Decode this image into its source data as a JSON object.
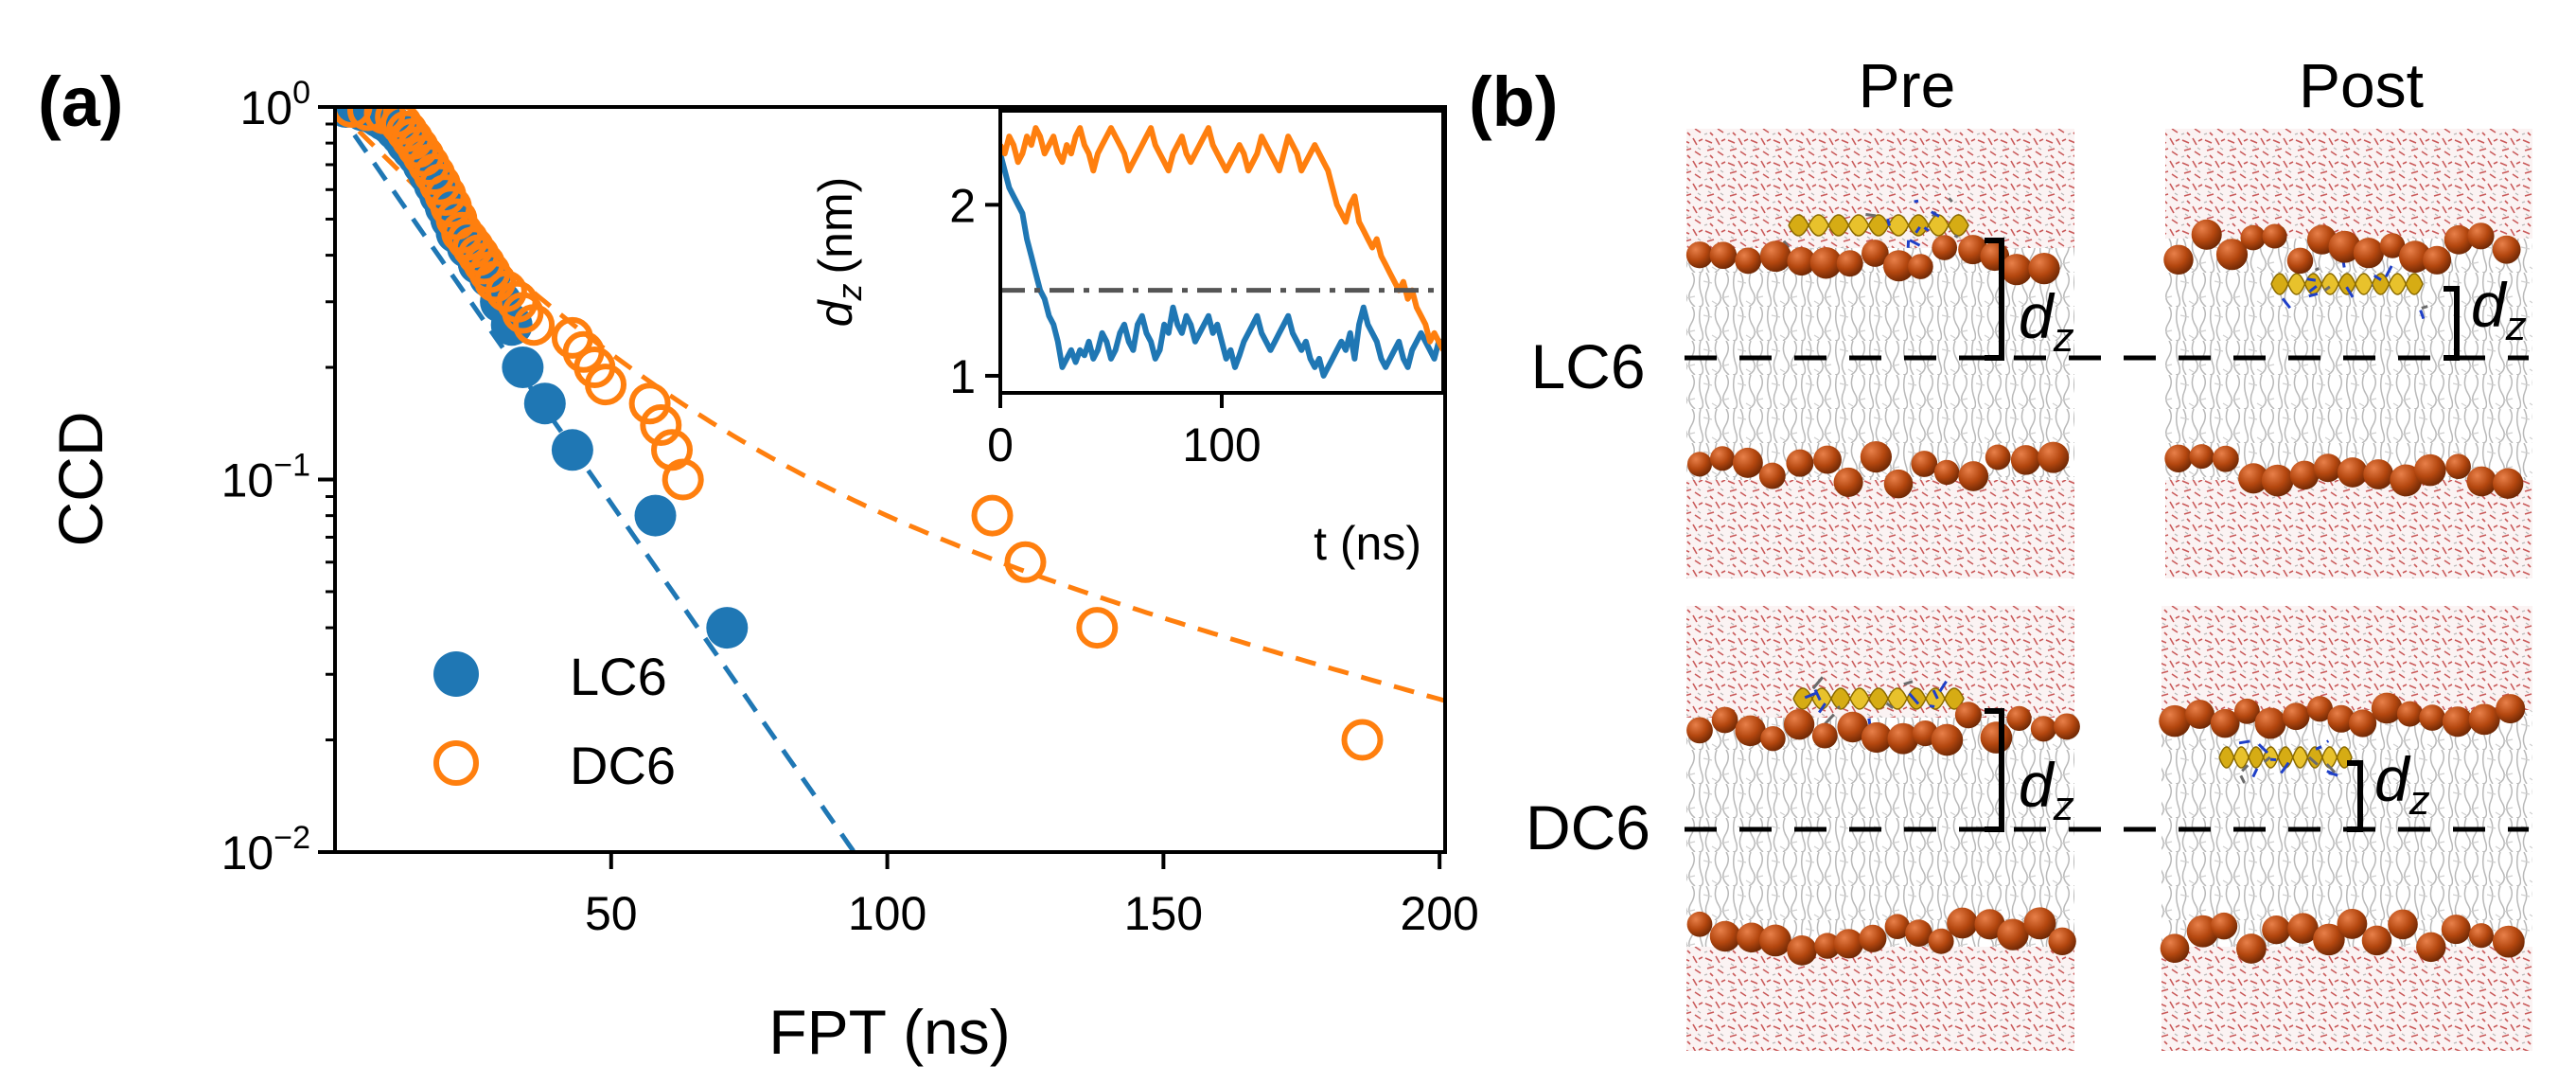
{
  "chart_data": [
    {
      "panel": "(a)",
      "type": "scatter",
      "xlabel": "FPT (ns)",
      "ylabel": "CCD",
      "xlim": [
        0,
        201
      ],
      "ylim": [
        0.01,
        1
      ],
      "yscale": "log",
      "xticks": [
        50,
        100,
        150,
        200
      ],
      "xtick_labels": [
        "50",
        "100",
        "150",
        "200"
      ],
      "yticks": [
        1,
        0.1,
        0.01
      ],
      "ytick_labels": [
        {
          "base": "10",
          "exp": "0"
        },
        {
          "base": "10",
          "exp": "−1"
        },
        {
          "base": "10",
          "exp": "−2"
        }
      ],
      "legend_position": "lower-left",
      "series": [
        {
          "name": "LC6",
          "marker": "filled-circle",
          "color": "#1f77b4",
          "points": [
            [
              2,
              1.0
            ],
            [
              5,
              0.98
            ],
            [
              7,
              0.96
            ],
            [
              8,
              0.94
            ],
            [
              9,
              0.92
            ],
            [
              10,
              0.9
            ],
            [
              11,
              0.87
            ],
            [
              12,
              0.84
            ],
            [
              13,
              0.8
            ],
            [
              14,
              0.77
            ],
            [
              15,
              0.74
            ],
            [
              16,
              0.7
            ],
            [
              17,
              0.66
            ],
            [
              18,
              0.62
            ],
            [
              19,
              0.58
            ],
            [
              20,
              0.54
            ],
            [
              21,
              0.5
            ],
            [
              22,
              0.46
            ],
            [
              24,
              0.42
            ],
            [
              26,
              0.38
            ],
            [
              28,
              0.35
            ],
            [
              30,
              0.3
            ],
            [
              32,
              0.26
            ],
            [
              34,
              0.2
            ],
            [
              38,
              0.16
            ],
            [
              43,
              0.12
            ],
            [
              58,
              0.08
            ],
            [
              71,
              0.04
            ]
          ],
          "fit": {
            "type": "exponential",
            "rate": 0.049,
            "x_range": [
              0,
              95
            ]
          }
        },
        {
          "name": "DC6",
          "marker": "open-circle",
          "color": "#ff7f0e",
          "points": [
            [
              3,
              1.0
            ],
            [
              6,
              0.98
            ],
            [
              9,
              0.96
            ],
            [
              11,
              0.94
            ],
            [
              12,
              0.9
            ],
            [
              13,
              0.86
            ],
            [
              14,
              0.82
            ],
            [
              15,
              0.78
            ],
            [
              16,
              0.74
            ],
            [
              17,
              0.7
            ],
            [
              18,
              0.66
            ],
            [
              19,
              0.62
            ],
            [
              20,
              0.58
            ],
            [
              21,
              0.54
            ],
            [
              22,
              0.5
            ],
            [
              23,
              0.46
            ],
            [
              24,
              0.44
            ],
            [
              25,
              0.42
            ],
            [
              26,
              0.4
            ],
            [
              27,
              0.38
            ],
            [
              28,
              0.36
            ],
            [
              29,
              0.34
            ],
            [
              31,
              0.32
            ],
            [
              33,
              0.3
            ],
            [
              34,
              0.28
            ],
            [
              36,
              0.26
            ],
            [
              43,
              0.24
            ],
            [
              45,
              0.22
            ],
            [
              47,
              0.2
            ],
            [
              49,
              0.18
            ],
            [
              57,
              0.16
            ],
            [
              59,
              0.14
            ],
            [
              61,
              0.12
            ],
            [
              63,
              0.1
            ],
            [
              119,
              0.08
            ],
            [
              125,
              0.06
            ],
            [
              138,
              0.04
            ],
            [
              186,
              0.02
            ]
          ],
          "fit": {
            "type": "biexponential",
            "amp1": 0.84,
            "rate1": 0.0395,
            "amp2": 0.16,
            "rate2": 0.0092,
            "x_range": [
              0,
              201
            ]
          }
        }
      ]
    },
    {
      "panel": "inset",
      "type": "line",
      "xlabel": "t (ns)",
      "ylabel": "d",
      "ylabel_sub": "z",
      "ylabel_unit": "(nm)",
      "xlim": [
        0,
        200
      ],
      "ylim": [
        0.9,
        2.55
      ],
      "xticks": [
        0,
        100
      ],
      "xtick_labels": [
        "0",
        "100"
      ],
      "yticks": [
        1,
        2
      ],
      "ytick_labels": [
        "1",
        "2"
      ],
      "threshold": 1.5,
      "series": [
        {
          "name": "LC6",
          "color": "#1f77b4",
          "t": [
            0,
            2,
            4,
            6,
            8,
            10,
            12,
            14,
            16,
            18,
            20,
            22,
            24,
            26,
            28,
            30,
            32,
            34,
            36,
            38,
            40,
            42,
            44,
            46,
            48,
            50,
            52,
            54,
            56,
            58,
            60,
            62,
            64,
            66,
            68,
            70,
            72,
            74,
            76,
            78,
            80,
            82,
            84,
            86,
            88,
            90,
            92,
            94,
            96,
            98,
            100,
            102,
            104,
            106,
            108,
            110,
            112,
            114,
            116,
            118,
            120,
            122,
            124,
            126,
            128,
            130,
            132,
            134,
            136,
            138,
            140,
            142,
            144,
            146,
            148,
            150,
            152,
            154,
            156,
            158,
            160,
            162,
            164,
            166,
            168,
            170,
            172,
            174,
            176,
            178,
            180,
            182,
            184,
            186,
            188,
            190,
            192,
            194,
            196,
            198,
            200
          ],
          "d": [
            2.3,
            2.2,
            2.1,
            2.05,
            2.0,
            1.95,
            1.8,
            1.7,
            1.6,
            1.5,
            1.45,
            1.35,
            1.3,
            1.2,
            1.05,
            1.1,
            1.15,
            1.08,
            1.15,
            1.12,
            1.2,
            1.1,
            1.15,
            1.25,
            1.2,
            1.1,
            1.15,
            1.25,
            1.3,
            1.2,
            1.15,
            1.3,
            1.35,
            1.25,
            1.2,
            1.1,
            1.15,
            1.3,
            1.25,
            1.4,
            1.3,
            1.25,
            1.35,
            1.3,
            1.2,
            1.25,
            1.3,
            1.35,
            1.25,
            1.3,
            1.2,
            1.1,
            1.15,
            1.05,
            1.12,
            1.2,
            1.25,
            1.3,
            1.35,
            1.25,
            1.2,
            1.15,
            1.2,
            1.25,
            1.3,
            1.35,
            1.25,
            1.2,
            1.15,
            1.2,
            1.1,
            1.05,
            1.1,
            1.0,
            1.05,
            1.1,
            1.15,
            1.2,
            1.15,
            1.25,
            1.1,
            1.3,
            1.4,
            1.3,
            1.25,
            1.2,
            1.1,
            1.05,
            1.1,
            1.15,
            1.2,
            1.1,
            1.05,
            1.15,
            1.2,
            1.25,
            1.2,
            1.15,
            1.1,
            1.2,
            1.2
          ]
        },
        {
          "name": "DC6",
          "color": "#ff7f0e",
          "t": [
            0,
            2,
            4,
            6,
            8,
            10,
            12,
            14,
            16,
            18,
            20,
            22,
            24,
            26,
            28,
            30,
            32,
            34,
            36,
            38,
            40,
            42,
            44,
            46,
            48,
            50,
            52,
            54,
            56,
            58,
            60,
            62,
            64,
            66,
            68,
            70,
            72,
            74,
            76,
            78,
            80,
            82,
            84,
            86,
            88,
            90,
            92,
            94,
            96,
            98,
            100,
            102,
            104,
            106,
            108,
            110,
            112,
            114,
            116,
            118,
            120,
            122,
            124,
            126,
            128,
            130,
            132,
            134,
            136,
            138,
            140,
            142,
            144,
            146,
            148,
            150,
            152,
            154,
            156,
            158,
            160,
            162,
            164,
            166,
            168,
            170,
            172,
            174,
            176,
            178,
            180,
            182,
            184,
            186,
            188,
            190,
            192,
            194,
            196,
            198,
            200
          ],
          "d": [
            2.35,
            2.3,
            2.4,
            2.35,
            2.25,
            2.3,
            2.4,
            2.35,
            2.45,
            2.4,
            2.3,
            2.35,
            2.4,
            2.3,
            2.25,
            2.35,
            2.3,
            2.4,
            2.45,
            2.35,
            2.3,
            2.2,
            2.3,
            2.35,
            2.4,
            2.45,
            2.4,
            2.35,
            2.3,
            2.2,
            2.25,
            2.3,
            2.35,
            2.4,
            2.45,
            2.35,
            2.3,
            2.25,
            2.2,
            2.3,
            2.35,
            2.4,
            2.3,
            2.25,
            2.3,
            2.35,
            2.4,
            2.45,
            2.35,
            2.3,
            2.25,
            2.2,
            2.25,
            2.3,
            2.35,
            2.3,
            2.2,
            2.25,
            2.3,
            2.4,
            2.35,
            2.3,
            2.25,
            2.2,
            2.3,
            2.4,
            2.35,
            2.3,
            2.2,
            2.25,
            2.3,
            2.35,
            2.3,
            2.25,
            2.2,
            2.1,
            2.0,
            1.95,
            1.9,
            2.0,
            2.05,
            1.9,
            1.85,
            1.8,
            1.75,
            1.8,
            1.7,
            1.65,
            1.6,
            1.55,
            1.5,
            1.55,
            1.45,
            1.5,
            1.4,
            1.35,
            1.3,
            1.2,
            1.25,
            1.2,
            1.15
          ]
        }
      ]
    }
  ],
  "panel_b": {
    "label": "(b)",
    "columns": [
      "Pre",
      "Post"
    ],
    "rows": [
      "LC6",
      "DC6"
    ],
    "distance_label": {
      "base": "d",
      "sub": "z"
    }
  }
}
